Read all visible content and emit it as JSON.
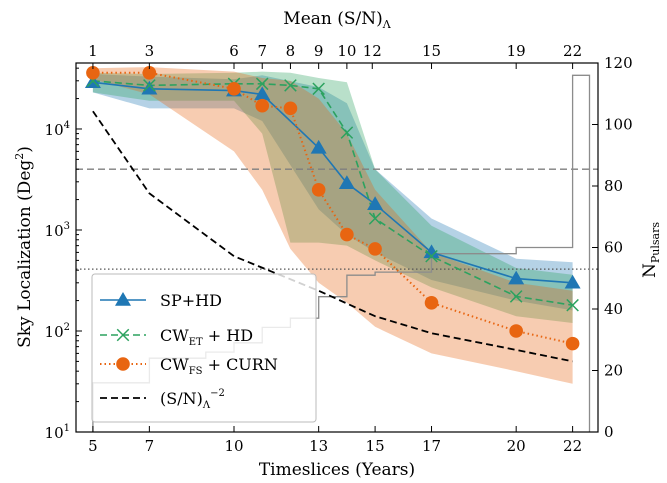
{
  "chart_data": {
    "type": "line",
    "xlabel": "Timeslices (Years)",
    "top_xlabel": "Mean (S/N)",
    "top_xlabel_sub": "Λ",
    "ylabel_left": "Sky Localization (Deg",
    "ylabel_left_sup": "2",
    "ylabel_left_close": ")",
    "ylabel_right": "N",
    "ylabel_right_sub": "Pulsars",
    "x_ticks": [
      5,
      7,
      10,
      13,
      15,
      17,
      20,
      22
    ],
    "top_ticks": [
      {
        "x": 5.0,
        "label": "1"
      },
      {
        "x": 7.0,
        "label": "3"
      },
      {
        "x": 10.0,
        "label": "6"
      },
      {
        "x": 11.0,
        "label": "7"
      },
      {
        "x": 12.0,
        "label": "8"
      },
      {
        "x": 13.0,
        "label": "9"
      },
      {
        "x": 14.0,
        "label": "10"
      },
      {
        "x": 14.9,
        "label": "12"
      },
      {
        "x": 17.0,
        "label": "15"
      },
      {
        "x": 20.0,
        "label": "19"
      },
      {
        "x": 22.0,
        "label": "22"
      }
    ],
    "y_left_scale": "log",
    "y_left_range": [
      10,
      45000
    ],
    "y_left_ticks": [
      {
        "v": 10,
        "b": "10",
        "e": "1"
      },
      {
        "v": 100,
        "b": "10",
        "e": "2"
      },
      {
        "v": 1000,
        "b": "10",
        "e": "3"
      },
      {
        "v": 10000,
        "b": "10",
        "e": "4"
      }
    ],
    "y_right_range": [
      0,
      120
    ],
    "y_right_ticks": [
      0,
      20,
      40,
      60,
      80,
      100,
      120
    ],
    "x_range": [
      4.4,
      22.9
    ],
    "series": [
      {
        "name": "SP+HD",
        "color": "#1f77b4",
        "x": [
          5,
          7,
          10,
          11,
          13,
          14,
          15,
          17,
          20,
          22
        ],
        "y": [
          29000,
          25000,
          24000,
          22000,
          6500,
          2900,
          1800,
          600,
          330,
          300
        ],
        "lower": [
          23000,
          16000,
          16000,
          12000,
          1600,
          900,
          600,
          320,
          200,
          160
        ],
        "upper": [
          35000,
          33000,
          31000,
          34000,
          26000,
          18000,
          4000,
          1300,
          520,
          480
        ]
      },
      {
        "name": "CW",
        "name_sub": "ET",
        "name_rest": " + HD",
        "color": "#2ca25f",
        "x": [
          5,
          7,
          10,
          11,
          12,
          13,
          14,
          15,
          17,
          20,
          22
        ],
        "y": [
          30000,
          27000,
          28000,
          28000,
          27000,
          25000,
          9200,
          1300,
          550,
          220,
          180
        ],
        "lower": [
          23000,
          19000,
          19000,
          9000,
          750,
          750,
          700,
          500,
          270,
          140,
          120
        ],
        "upper": [
          36000,
          35000,
          36000,
          37000,
          36000,
          32000,
          29000,
          4000,
          1100,
          420,
          360
        ]
      },
      {
        "name": "CW",
        "name_sub": "FS",
        "name_rest": " + CURN",
        "color": "#e86511",
        "x": [
          5,
          7,
          10,
          11,
          12,
          13,
          14,
          15,
          17,
          20,
          22
        ],
        "y": [
          36000,
          36000,
          25000,
          17000,
          16000,
          2500,
          900,
          650,
          190,
          100,
          75
        ],
        "lower": [
          31000,
          22000,
          6000,
          2500,
          650,
          300,
          190,
          110,
          60,
          40,
          30
        ],
        "upper": [
          40000,
          41000,
          37000,
          32000,
          30000,
          20000,
          9000,
          2500,
          600,
          300,
          250
        ]
      },
      {
        "name": "(S/N)",
        "name_sub": "Λ",
        "name_sup": "−2",
        "color": "#000000",
        "x": [
          5,
          7,
          10,
          13,
          15,
          17,
          20,
          22
        ],
        "y": [
          15000,
          2300,
          550,
          250,
          140,
          95,
          65,
          50
        ]
      }
    ],
    "pulsar_steps": {
      "x": [
        5,
        7,
        9,
        10,
        11,
        12,
        13,
        14,
        15,
        17,
        20,
        22,
        22.6
      ],
      "n_pulsars": [
        16,
        24,
        26,
        29,
        34,
        37,
        44,
        51,
        52,
        58,
        60,
        116,
        0
      ]
    },
    "hlines": [
      {
        "y": 4000,
        "style": "dashed",
        "color": "#7f7f7f"
      },
      {
        "y": 410,
        "style": "dotted",
        "color": "#555555"
      }
    ],
    "legend_position": "lower-left"
  }
}
